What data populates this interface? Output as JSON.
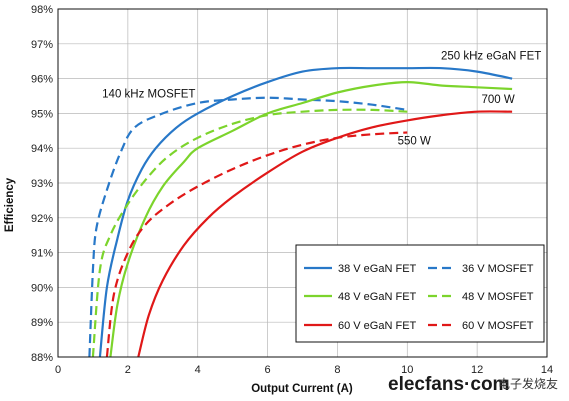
{
  "chart_data": {
    "type": "line",
    "title": "",
    "xlabel": "Output Current (A)",
    "ylabel": "Efficiency",
    "xlim": [
      0,
      14
    ],
    "ylim": [
      88,
      98
    ],
    "x_ticks": [
      "0",
      "2",
      "4",
      "6",
      "8",
      "10",
      "12",
      "14"
    ],
    "y_ticks": [
      "88%",
      "89%",
      "90%",
      "91%",
      "92%",
      "93%",
      "94%",
      "95%",
      "96%",
      "97%",
      "98%"
    ],
    "grid": true,
    "legend_placement": "lower-right",
    "annotations": [
      {
        "text": "250 kHz eGaN FET",
        "x": 12.4,
        "y": 96.55
      },
      {
        "text": "140 kHz MOSFET",
        "x": 2.6,
        "y": 95.45
      },
      {
        "text": "700 W",
        "x": 12.6,
        "y": 95.3
      },
      {
        "text": "550 W",
        "x": 10.2,
        "y": 94.1
      }
    ],
    "series": [
      {
        "name": "38 V eGaN FET",
        "color": "#2878c8",
        "dash": "solid",
        "points": [
          [
            1.2,
            88.0
          ],
          [
            1.4,
            90.0
          ],
          [
            1.7,
            91.4
          ],
          [
            2.0,
            92.5
          ],
          [
            2.4,
            93.4
          ],
          [
            2.8,
            94.0
          ],
          [
            3.4,
            94.6
          ],
          [
            4.0,
            95.0
          ],
          [
            5.0,
            95.5
          ],
          [
            6.0,
            95.9
          ],
          [
            7.0,
            96.2
          ],
          [
            8.0,
            96.3
          ],
          [
            9.0,
            96.3
          ],
          [
            10.0,
            96.3
          ],
          [
            11.0,
            96.3
          ],
          [
            12.0,
            96.2
          ],
          [
            13.0,
            96.0
          ]
        ]
      },
      {
        "name": "36 V MOSFET",
        "color": "#2878c8",
        "dash": "dashed",
        "points": [
          [
            0.9,
            88.0
          ],
          [
            1.0,
            90.5
          ],
          [
            1.1,
            91.7
          ],
          [
            1.4,
            92.8
          ],
          [
            1.8,
            93.9
          ],
          [
            2.2,
            94.6
          ],
          [
            3.0,
            95.0
          ],
          [
            4.0,
            95.3
          ],
          [
            5.0,
            95.4
          ],
          [
            6.0,
            95.45
          ],
          [
            7.0,
            95.4
          ],
          [
            8.0,
            95.35
          ],
          [
            9.0,
            95.25
          ],
          [
            10.0,
            95.1
          ]
        ]
      },
      {
        "name": "48 V eGaN FET",
        "color": "#7cd42c",
        "dash": "solid",
        "points": [
          [
            1.5,
            88.0
          ],
          [
            1.7,
            89.5
          ],
          [
            2.0,
            90.7
          ],
          [
            2.5,
            92.0
          ],
          [
            3.0,
            92.9
          ],
          [
            3.6,
            93.6
          ],
          [
            4.0,
            94.0
          ],
          [
            5.0,
            94.5
          ],
          [
            6.0,
            95.0
          ],
          [
            7.0,
            95.3
          ],
          [
            8.0,
            95.6
          ],
          [
            9.0,
            95.8
          ],
          [
            10.0,
            95.9
          ],
          [
            11.0,
            95.8
          ],
          [
            12.0,
            95.75
          ],
          [
            13.0,
            95.7
          ]
        ]
      },
      {
        "name": "48 V MOSFET",
        "color": "#7cd42c",
        "dash": "dashed",
        "points": [
          [
            1.0,
            88.0
          ],
          [
            1.2,
            90.5
          ],
          [
            1.5,
            91.5
          ],
          [
            2.0,
            92.4
          ],
          [
            2.6,
            93.2
          ],
          [
            3.2,
            93.8
          ],
          [
            4.0,
            94.3
          ],
          [
            5.0,
            94.7
          ],
          [
            6.0,
            94.95
          ],
          [
            7.0,
            95.05
          ],
          [
            8.0,
            95.1
          ],
          [
            9.0,
            95.1
          ],
          [
            10.0,
            95.05
          ]
        ]
      },
      {
        "name": "60 V eGaN FET",
        "color": "#e01818",
        "dash": "solid",
        "points": [
          [
            2.3,
            88.0
          ],
          [
            2.6,
            89.2
          ],
          [
            3.0,
            90.2
          ],
          [
            3.6,
            91.2
          ],
          [
            4.3,
            92.0
          ],
          [
            5.0,
            92.6
          ],
          [
            6.0,
            93.3
          ],
          [
            7.0,
            93.9
          ],
          [
            8.0,
            94.3
          ],
          [
            9.0,
            94.6
          ],
          [
            10.0,
            94.8
          ],
          [
            11.0,
            94.95
          ],
          [
            12.0,
            95.05
          ],
          [
            13.0,
            95.05
          ]
        ]
      },
      {
        "name": "60 V MOSFET",
        "color": "#e01818",
        "dash": "dashed",
        "points": [
          [
            1.4,
            88.0
          ],
          [
            1.6,
            89.8
          ],
          [
            2.0,
            91.0
          ],
          [
            2.5,
            91.8
          ],
          [
            3.2,
            92.4
          ],
          [
            4.0,
            92.9
          ],
          [
            5.0,
            93.4
          ],
          [
            6.0,
            93.8
          ],
          [
            7.0,
            94.1
          ],
          [
            8.0,
            94.3
          ],
          [
            9.0,
            94.4
          ],
          [
            10.0,
            94.45
          ]
        ]
      }
    ]
  },
  "watermark": {
    "main": "elecfans·com",
    "sub": "电子发烧友"
  }
}
